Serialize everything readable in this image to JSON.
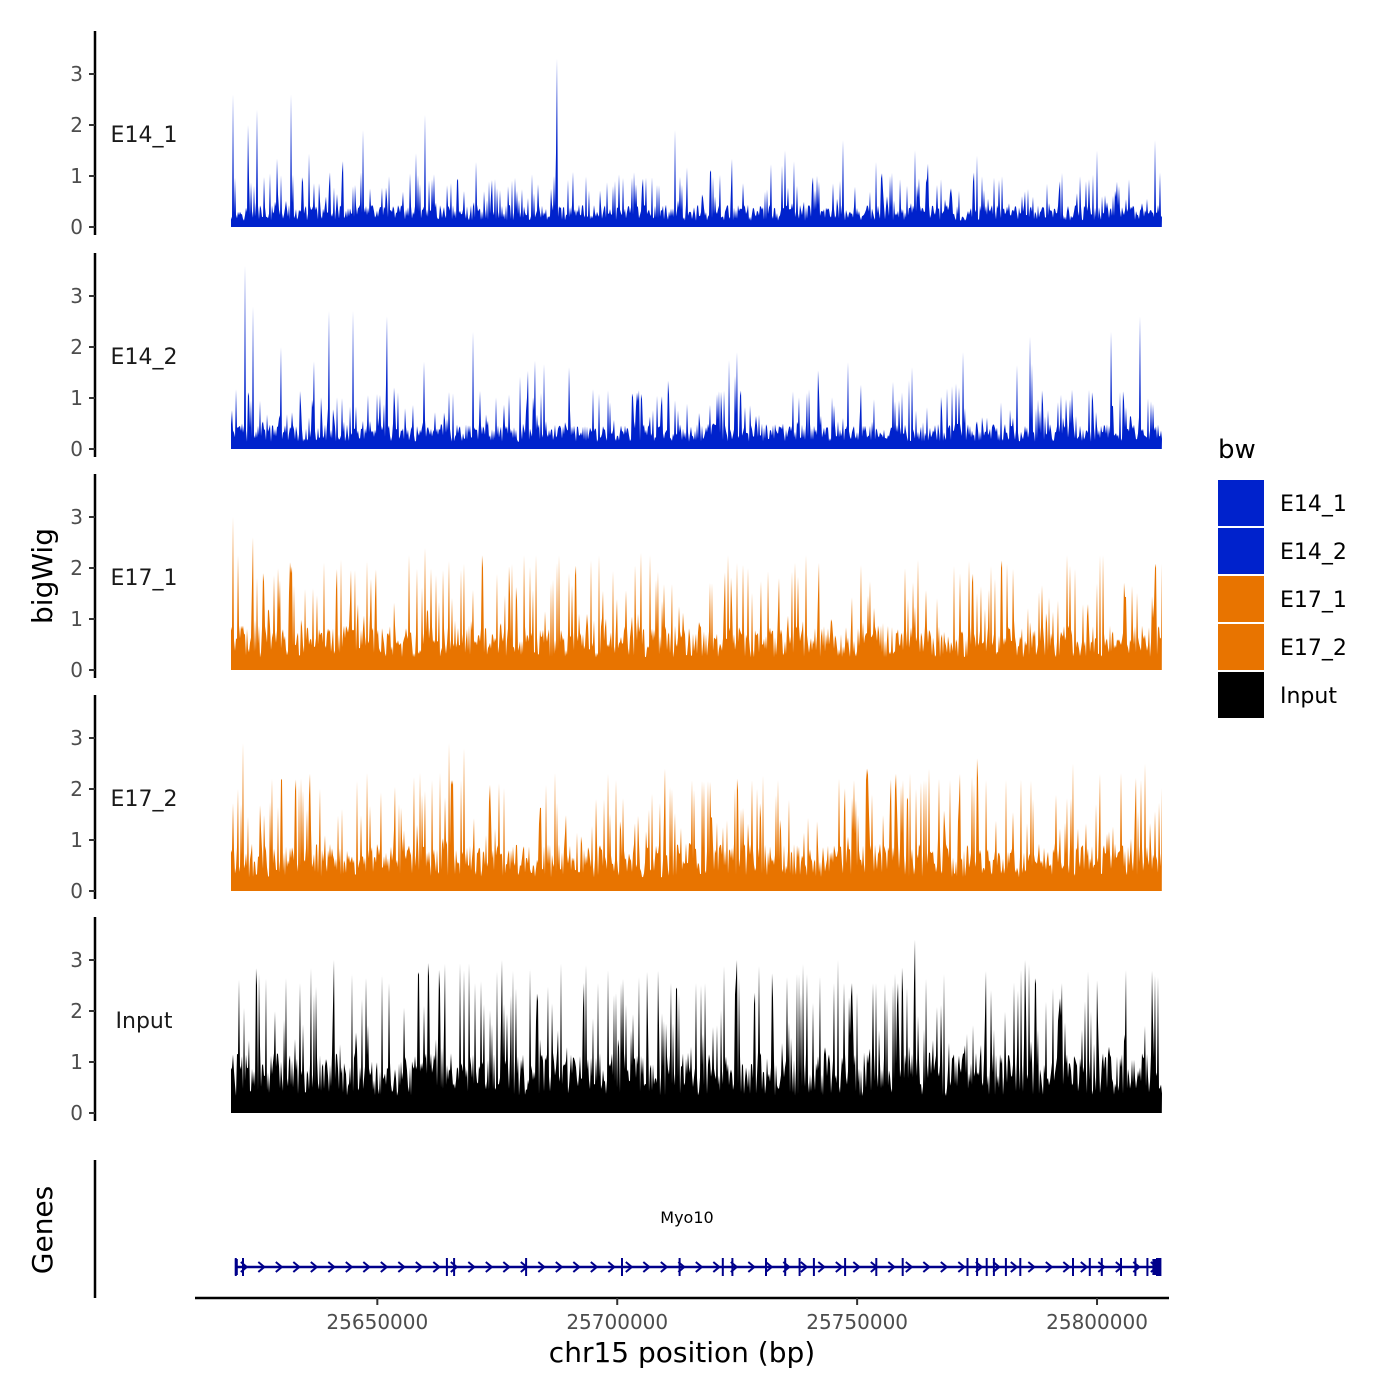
{
  "chart_data": {
    "type": "area",
    "xlabel": "chr15 position (bp)",
    "ylabel": "bigWig",
    "genes_label": "Genes",
    "xlim": [
      25612000,
      25815000
    ],
    "data_range": [
      25619500,
      25813500
    ],
    "x_ticks": [
      25650000,
      25700000,
      25750000,
      25800000
    ],
    "x_tick_labels": [
      "25650000",
      "25700000",
      "25750000",
      "25800000"
    ],
    "ylim": [
      0,
      3.8
    ],
    "y_ticks": [
      0,
      1,
      2,
      3
    ],
    "y_tick_labels": [
      "0",
      "1",
      "2",
      "3"
    ],
    "legend": {
      "title": "bw",
      "placement": "right",
      "entries": [
        {
          "label": "E14_1",
          "color": "#0022CC"
        },
        {
          "label": "E14_2",
          "color": "#0022CC"
        },
        {
          "label": "E17_1",
          "color": "#E87400"
        },
        {
          "label": "E17_2",
          "color": "#E87400"
        },
        {
          "label": "Input",
          "color": "#000000"
        }
      ]
    },
    "series": [
      {
        "name": "E14_1",
        "color": "#0022CC",
        "base": 0.35,
        "max": 3.3,
        "peaks": [
          [
            25620000,
            2.6
          ],
          [
            25623000,
            2.0
          ],
          [
            25625000,
            2.3
          ],
          [
            25632000,
            2.6
          ],
          [
            25647000,
            1.9
          ],
          [
            25660000,
            2.2
          ],
          [
            25687500,
            3.3
          ],
          [
            25712000,
            1.9
          ],
          [
            25735000,
            1.5
          ],
          [
            25747000,
            1.7
          ],
          [
            25762000,
            1.5
          ],
          [
            25775000,
            1.4
          ],
          [
            25800000,
            1.5
          ],
          [
            25812000,
            1.7
          ]
        ]
      },
      {
        "name": "E14_2",
        "color": "#0022CC",
        "base": 0.4,
        "max": 3.6,
        "peaks": [
          [
            25622500,
            3.6
          ],
          [
            25624000,
            2.8
          ],
          [
            25630000,
            2.0
          ],
          [
            25640000,
            2.7
          ],
          [
            25645000,
            2.7
          ],
          [
            25652000,
            2.6
          ],
          [
            25670000,
            2.3
          ],
          [
            25690000,
            1.6
          ],
          [
            25725000,
            1.9
          ],
          [
            25748000,
            1.7
          ],
          [
            25772000,
            1.9
          ],
          [
            25786000,
            2.2
          ],
          [
            25803000,
            2.3
          ],
          [
            25809000,
            2.6
          ]
        ]
      },
      {
        "name": "E17_1",
        "color": "#E87400",
        "base": 0.7,
        "max": 3.0,
        "peaks": [
          [
            25620000,
            3.0
          ],
          [
            25624000,
            2.6
          ],
          [
            25632000,
            1.9
          ],
          [
            25660000,
            2.4
          ],
          [
            25672000,
            2.0
          ],
          [
            25690000,
            1.9
          ],
          [
            25705000,
            2.3
          ],
          [
            25725000,
            2.1
          ],
          [
            25742000,
            2.1
          ],
          [
            25760000,
            2.0
          ],
          [
            25780000,
            2.0
          ],
          [
            25800000,
            1.7
          ],
          [
            25812000,
            2.0
          ]
        ]
      },
      {
        "name": "E17_2",
        "color": "#E87400",
        "base": 0.75,
        "max": 2.9,
        "peaks": [
          [
            25622000,
            2.9
          ],
          [
            25628000,
            2.2
          ],
          [
            25636000,
            2.3
          ],
          [
            25665000,
            2.9
          ],
          [
            25668000,
            2.8
          ],
          [
            25698000,
            2.3
          ],
          [
            25710000,
            2.4
          ],
          [
            25725000,
            2.2
          ],
          [
            25752000,
            2.4
          ],
          [
            25765000,
            2.4
          ],
          [
            25775000,
            2.6
          ],
          [
            25795000,
            2.5
          ],
          [
            25810000,
            2.5
          ]
        ]
      },
      {
        "name": "Input",
        "color": "#000000",
        "base": 0.95,
        "max": 3.4,
        "peaks": [
          [
            25625000,
            2.5
          ],
          [
            25641000,
            3.0
          ],
          [
            25651000,
            2.7
          ],
          [
            25668000,
            2.8
          ],
          [
            25676000,
            3.0
          ],
          [
            25698000,
            2.8
          ],
          [
            25725000,
            3.0
          ],
          [
            25746000,
            3.0
          ],
          [
            25762000,
            3.4
          ],
          [
            25785000,
            3.0
          ],
          [
            25800000,
            2.6
          ],
          [
            25806000,
            2.8
          ],
          [
            25812000,
            2.7
          ]
        ]
      }
    ],
    "gene": {
      "name": "Myo10",
      "start": 25620500,
      "end": 25813000,
      "strand": "+",
      "color": "#00008B",
      "exons": [
        25620500,
        25622000,
        25664500,
        25666000,
        25681000,
        25701000,
        25713000,
        25722000,
        25724000,
        25731000,
        25735000,
        25738000,
        25741000,
        25747500,
        25754000,
        25759500,
        25773000,
        25775000,
        25777000,
        25778500,
        25781000,
        25784000,
        25795000,
        25798500,
        25801000,
        25805000,
        25808000,
        25810500,
        25812500,
        25813000
      ]
    }
  }
}
